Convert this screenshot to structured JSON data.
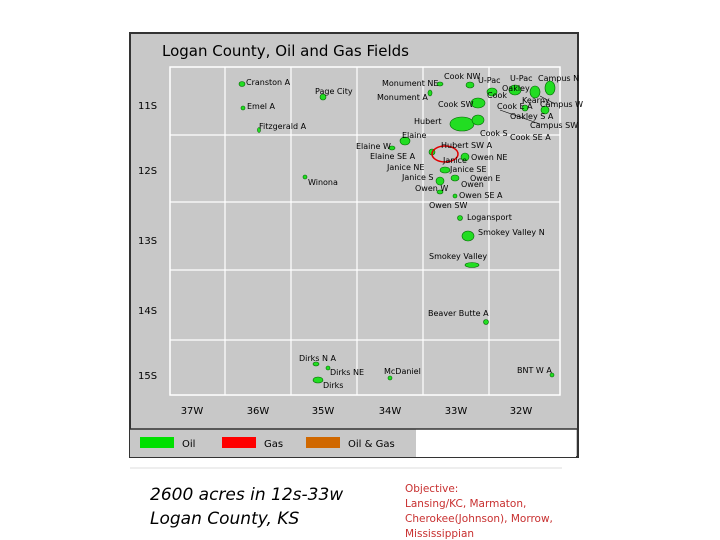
{
  "title": "Logan County, Oil and Gas Fields",
  "townships": [
    "11S",
    "12S",
    "13S",
    "14S",
    "15S"
  ],
  "ranges": [
    "37W",
    "36W",
    "35W",
    "34W",
    "33W",
    "32W"
  ],
  "fields": [
    "Cranston A",
    "Emel A",
    "Fitzgerald A",
    "Page City",
    "Monument NE",
    "Monument A",
    "Cook NW",
    "U-Pac",
    "U-Pac",
    "Campus N",
    "Oakley",
    "Cook",
    "Kearny",
    "Campus W",
    "Cook SW",
    "Cook E A",
    "Oakley S A",
    "Hubert",
    "Campus SW",
    "Cook S",
    "Cook SE A",
    "Elaine",
    "Elaine W",
    "Hubert SW A",
    "Elaine SE A",
    "Owen NE",
    "Janice",
    "Janice NE",
    "Janice SE",
    "Janice S",
    "Owen E",
    "Owen",
    "Owen W",
    "Owen SE A",
    "Owen SW",
    "Winona",
    "Logansport",
    "Smokey Valley N",
    "Smokey Valley",
    "Beaver Butte A",
    "Dirks N A",
    "Dirks NE",
    "McDaniel",
    "Dirks",
    "BNT W A"
  ],
  "legend": [
    {
      "label": "Oil",
      "color": "#00e000"
    },
    {
      "label": "Gas",
      "color": "#ff0000"
    },
    {
      "label": "Oil & Gas",
      "color": "#d06800"
    }
  ],
  "footer": [
    "2600 acres in 12s-33w",
    "Logan County, KS"
  ],
  "objective": [
    "Objective:",
    "Lansing/KC, Marmaton,",
    "Cherokee(Johnson), Morrow,",
    "Mississippian"
  ]
}
